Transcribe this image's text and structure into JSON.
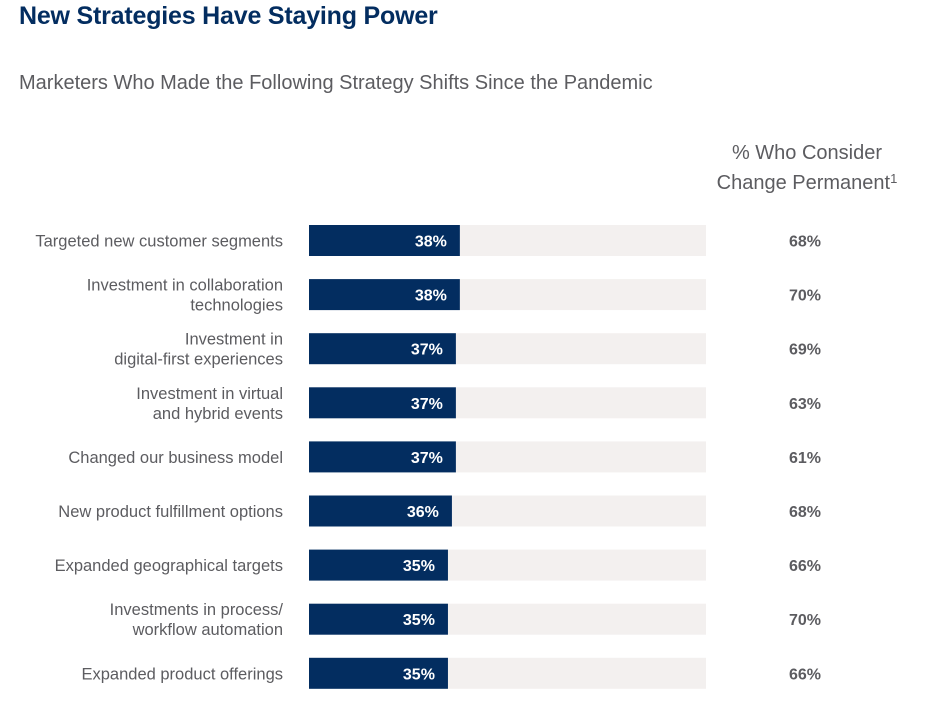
{
  "chart_data": {
    "type": "bar",
    "orientation": "horizontal",
    "title": "New Strategies Have Staying Power",
    "subtitle": "Marketers Who Made the Following Strategy Shifts Since the Pandemic",
    "secondary_column_header": "% Who Consider Change Permanent",
    "secondary_column_header_lines": [
      "% Who Consider",
      "Change Permanent"
    ],
    "secondary_column_footnote": "1",
    "xlim": [
      0,
      100
    ],
    "grid": false,
    "categories": [
      [
        "Targeted new customer segments"
      ],
      [
        "Investment in collaboration",
        "technologies"
      ],
      [
        "Investment in",
        "digital-first experiences"
      ],
      [
        "Investment in virtual",
        "and hybrid events"
      ],
      [
        "Changed our business model"
      ],
      [
        "New product fulfillment options"
      ],
      [
        "Expanded geographical targets"
      ],
      [
        "Investments in process/",
        "workflow automation"
      ],
      [
        "Expanded product offerings"
      ]
    ],
    "series": [
      {
        "name": "Marketers who made the shift",
        "values": [
          38,
          38,
          37,
          37,
          37,
          36,
          35,
          35,
          35
        ],
        "unit": "%"
      },
      {
        "name": "% Who Consider Change Permanent",
        "values": [
          68,
          70,
          69,
          63,
          61,
          68,
          66,
          70,
          66
        ],
        "unit": "%"
      }
    ],
    "colors": {
      "bar": "#032d60",
      "track": "#f3f0ef",
      "title": "#032d60",
      "text": "#5c5c60",
      "bar_label": "#ffffff"
    }
  }
}
